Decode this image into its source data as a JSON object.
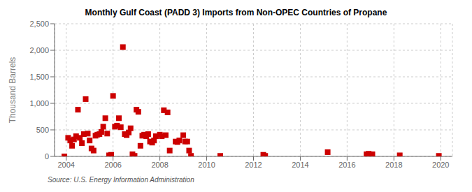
{
  "chart_data": {
    "type": "scatter",
    "title": "Monthly Gulf Coast (PADD 3) Imports from Non-OPEC Countries of Propane",
    "ylabel": "Thousand Barrels",
    "annotations": [
      "Source: U.S. Energy Information Administration"
    ],
    "color": "#cc0000",
    "marker": "square",
    "grid": true,
    "xlim": [
      2003.5,
      2020.5
    ],
    "xticks": [
      2004,
      2006,
      2008,
      2010,
      2012,
      2014,
      2016,
      2018,
      2020
    ],
    "ylim": [
      0,
      2500
    ],
    "yticks": [
      0,
      500,
      {
        "value": 1000,
        "label": "1,000"
      },
      {
        "value": 1500,
        "label": "1,500"
      },
      {
        "value": 2000,
        "label": "2,000"
      },
      {
        "value": 2500,
        "label": "2,500"
      }
    ],
    "x": [
      2003.92,
      2004.08,
      2004.17,
      2004.25,
      2004.33,
      2004.42,
      2004.5,
      2004.58,
      2004.67,
      2004.75,
      2004.83,
      2004.92,
      2005.0,
      2005.08,
      2005.17,
      2005.25,
      2005.33,
      2005.42,
      2005.5,
      2005.58,
      2005.67,
      2005.75,
      2005.83,
      2005.92,
      2006.0,
      2006.08,
      2006.17,
      2006.25,
      2006.33,
      2006.42,
      2006.5,
      2006.58,
      2006.67,
      2006.75,
      2006.83,
      2006.92,
      2007.0,
      2007.08,
      2007.17,
      2007.25,
      2007.33,
      2007.42,
      2007.5,
      2007.58,
      2007.67,
      2007.75,
      2007.83,
      2008.0,
      2008.08,
      2008.17,
      2008.25,
      2008.33,
      2008.42,
      2008.67,
      2008.75,
      2008.83,
      2009.0,
      2009.08,
      2009.17,
      2009.25,
      2009.33,
      2010.58,
      2012.42,
      2012.5,
      2015.17,
      2016.83,
      2016.92,
      2017.0,
      2017.08,
      2018.25,
      2019.92
    ],
    "values": [
      0,
      350,
      300,
      200,
      320,
      380,
      880,
      350,
      250,
      420,
      1080,
      430,
      300,
      150,
      110,
      390,
      410,
      420,
      460,
      560,
      720,
      430,
      20,
      30,
      1140,
      560,
      580,
      720,
      550,
      2060,
      420,
      400,
      450,
      530,
      40,
      10,
      880,
      840,
      200,
      390,
      410,
      380,
      420,
      280,
      260,
      300,
      380,
      410,
      380,
      870,
      400,
      830,
      110,
      280,
      270,
      300,
      400,
      280,
      280,
      110,
      10,
      10,
      30,
      10,
      80,
      40,
      50,
      40,
      40,
      20,
      10
    ]
  }
}
